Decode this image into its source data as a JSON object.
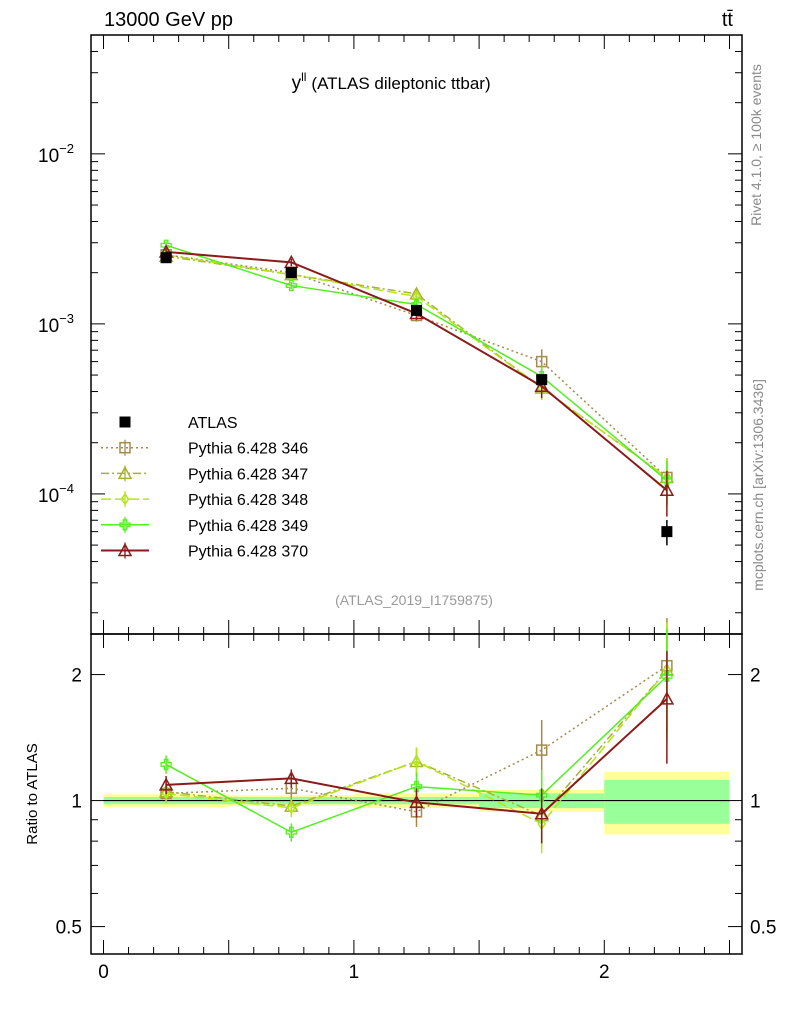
{
  "header": {
    "energy": "13000 GeV pp",
    "process": "tt̄"
  },
  "side": {
    "rivet": "Rivet 4.1.0, ≥ 100k events",
    "mcplots": "mcplots.cern.ch [arXiv:1306.3436]"
  },
  "chart_data": {
    "type": "scatter",
    "title": "y",
    "title_superscript": "ll",
    "subtitle": "(ATLAS dileptonic ttbar)",
    "analysis": "(ATLAS_2019_I1759875)",
    "main": {
      "yscale": "log",
      "ylim": [
        1.5e-05,
        0.05
      ],
      "ytick_labels": [
        {
          "base": "10",
          "exp": "−2",
          "value": 0.01
        },
        {
          "base": "10",
          "exp": "−3",
          "value": 0.001
        },
        {
          "base": "10",
          "exp": "−4",
          "value": 0.0001
        }
      ]
    },
    "ratio": {
      "ylabel": "Ratio to ATLAS",
      "yscale": "log",
      "ylim": [
        0.43,
        2.5
      ],
      "ytick_labels": [
        {
          "label": "2",
          "value": 2
        },
        {
          "label": "1",
          "value": 1
        },
        {
          "label": "0.5",
          "value": 0.5
        }
      ]
    },
    "xlim": [
      -0.05,
      2.55
    ],
    "xtick_labels": [
      {
        "label": "0",
        "value": 0
      },
      {
        "label": "1",
        "value": 1
      },
      {
        "label": "2",
        "value": 2
      }
    ],
    "bins": [
      0,
      0.5,
      1.0,
      1.5,
      2.0,
      2.5
    ],
    "x": [
      0.25,
      0.75,
      1.25,
      1.75,
      2.25
    ],
    "data": {
      "name": "ATLAS",
      "values": [
        0.00245,
        0.002,
        0.0012,
        0.00047,
        6e-05
      ],
      "rel_err_inner": [
        0.02,
        0.02,
        0.02,
        0.04,
        0.12
      ],
      "rel_err_outer": [
        0.035,
        0.03,
        0.04,
        0.06,
        0.17
      ]
    },
    "series": [
      {
        "name": "Pythia 6.428 346",
        "color": "#a58a4a",
        "marker": "square",
        "dash": "2,3",
        "values": [
          0.00255,
          0.002,
          0.00112,
          0.0006,
          0.000125
        ],
        "ratio": [
          1.04,
          1.07,
          0.94,
          1.32,
          2.1
        ],
        "rel_err": [
          0.05,
          0.05,
          0.08,
          0.18,
          0.3
        ]
      },
      {
        "name": "Pythia 6.428 347",
        "color": "#a9b22f",
        "marker": "triangle",
        "dash": "8,3,2,3",
        "values": [
          0.0025,
          0.00195,
          0.0015,
          0.00042,
          0.000125
        ],
        "ratio": [
          1.05,
          0.97,
          1.24,
          0.92,
          2.05
        ],
        "rel_err": [
          0.05,
          0.05,
          0.08,
          0.15,
          0.3
        ]
      },
      {
        "name": "Pythia 6.428 348",
        "color": "#b3e61a",
        "marker": "diamond",
        "dash": "10,4",
        "values": [
          0.00255,
          0.00195,
          0.00145,
          0.00042,
          0.000125
        ],
        "ratio": [
          1.04,
          0.96,
          1.24,
          0.88,
          2.05
        ],
        "rel_err": [
          0.05,
          0.05,
          0.08,
          0.15,
          0.3
        ]
      },
      {
        "name": "Pythia 6.428 349",
        "color": "#55ee22",
        "marker": "cross",
        "dash": "",
        "values": [
          0.0029,
          0.00168,
          0.0013,
          0.00049,
          0.00012
        ],
        "ratio": [
          1.22,
          0.84,
          1.08,
          1.03,
          1.98
        ],
        "rel_err": [
          0.05,
          0.05,
          0.08,
          0.15,
          0.3
        ]
      },
      {
        "name": "Pythia 6.428 370",
        "color": "#8b1a1a",
        "marker": "triangle",
        "dash": "",
        "values": [
          0.00265,
          0.0023,
          0.00115,
          0.00043,
          0.000105
        ],
        "ratio": [
          1.09,
          1.13,
          0.99,
          0.93,
          1.75
        ],
        "rel_err": [
          0.05,
          0.05,
          0.08,
          0.15,
          0.3
        ]
      }
    ]
  }
}
